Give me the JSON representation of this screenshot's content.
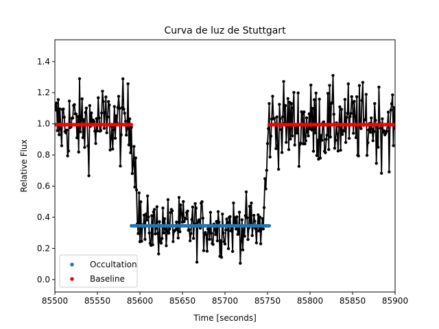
{
  "chart_data": {
    "type": "scatter",
    "title": "Curva de luz de Stuttgart",
    "xlabel": "Time [seconds]",
    "ylabel": "Relative Flux",
    "xlim": [
      85500,
      85900
    ],
    "ylim": [
      -0.08,
      1.54
    ],
    "x_ticks": [
      "85500",
      "85550",
      "85600",
      "85650",
      "85700",
      "85750",
      "85800",
      "85850",
      "85900"
    ],
    "y_ticks": [
      "0.0",
      "0.2",
      "0.4",
      "0.6",
      "0.8",
      "1.0",
      "1.2",
      "1.4"
    ],
    "grid": false,
    "legend_position": "lower-left",
    "series": [
      {
        "name": "",
        "style": "line+markers",
        "color": "#000000",
        "x_start": 85500,
        "x_end": 85900,
        "x_step": 1,
        "segments": [
          {
            "x_from": 85500,
            "x_to": 85590,
            "mean": 1.0,
            "noise": 0.14
          },
          {
            "x_from": 85590,
            "x_to": 85600,
            "mean_from": 1.0,
            "mean_to": 0.4,
            "noise": 0.14
          },
          {
            "x_from": 85600,
            "x_to": 85745,
            "mean": 0.34,
            "noise": 0.1
          },
          {
            "x_from": 85745,
            "x_to": 85752,
            "mean_from": 0.34,
            "mean_to": 1.0,
            "noise": 0.14
          },
          {
            "x_from": 85752,
            "x_to": 85900,
            "mean": 1.0,
            "noise": 0.14
          }
        ],
        "y_min": 0.0,
        "y_max": 1.42
      },
      {
        "name": "Occultation",
        "style": "markers",
        "color": "#1f77b4",
        "x_from": 85590,
        "x_to": 85752,
        "y": 0.345
      },
      {
        "name": "Baseline",
        "style": "markers",
        "color": "#ff0000",
        "ranges": [
          [
            85500,
            85590
          ],
          [
            85752,
            85900
          ]
        ],
        "y": 0.995
      }
    ],
    "legend": [
      "Occultation",
      "Baseline"
    ]
  }
}
